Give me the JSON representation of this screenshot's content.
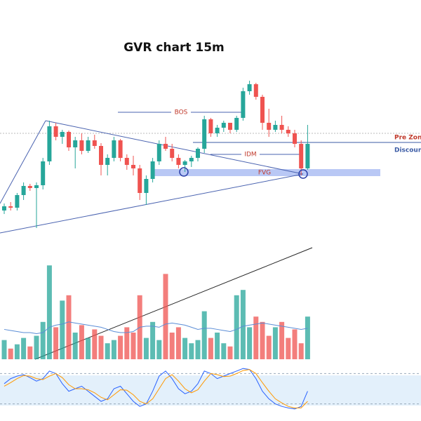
{
  "chart_data": {
    "type": "candlestick",
    "title": "GVR chart 15m",
    "annotations": {
      "bos": "BOS",
      "idm": "IDM",
      "fvg": "FVG",
      "pre_zone": "Pre Zone",
      "discount": "Discount"
    },
    "up_color": "#26a69a",
    "down_color": "#ef5350",
    "ylim": [
      60,
      300
    ],
    "open": [
      100,
      106,
      104,
      122,
      135,
      132,
      136,
      170,
      220,
      205,
      212,
      190,
      200,
      185,
      200,
      192,
      165,
      175,
      200,
      175,
      165,
      160,
      125,
      145,
      170,
      195,
      188,
      175,
      165,
      170,
      175,
      188,
      230,
      210,
      218,
      225,
      215,
      232,
      270,
      280,
      262,
      225,
      215,
      222,
      215,
      210,
      195,
      160
    ],
    "high": [
      110,
      112,
      125,
      140,
      138,
      140,
      175,
      228,
      225,
      215,
      214,
      205,
      210,
      205,
      208,
      196,
      180,
      205,
      202,
      180,
      178,
      165,
      150,
      175,
      200,
      205,
      195,
      180,
      172,
      178,
      190,
      235,
      232,
      222,
      228,
      225,
      235,
      275,
      285,
      282,
      265,
      245,
      228,
      235,
      220,
      215,
      200,
      222
    ],
    "low": [
      95,
      100,
      100,
      115,
      128,
      75,
      130,
      165,
      200,
      195,
      185,
      160,
      180,
      182,
      188,
      150,
      150,
      170,
      170,
      158,
      150,
      115,
      108,
      140,
      165,
      185,
      170,
      160,
      155,
      162,
      170,
      182,
      205,
      205,
      212,
      210,
      212,
      228,
      265,
      258,
      215,
      205,
      212,
      210,
      205,
      190,
      150,
      158
    ],
    "close": [
      106,
      104,
      122,
      135,
      132,
      136,
      170,
      220,
      205,
      212,
      190,
      200,
      185,
      200,
      192,
      165,
      175,
      200,
      175,
      165,
      160,
      125,
      145,
      170,
      195,
      188,
      175,
      165,
      170,
      175,
      188,
      230,
      210,
      218,
      225,
      215,
      232,
      270,
      280,
      262,
      225,
      215,
      222,
      215,
      210,
      195,
      160,
      195
    ],
    "volume": {
      "ylim": [
        0,
        100
      ],
      "values": [
        18,
        10,
        14,
        20,
        12,
        22,
        35,
        88,
        30,
        55,
        60,
        25,
        32,
        20,
        28,
        22,
        15,
        18,
        22,
        30,
        25,
        60,
        20,
        35,
        18,
        80,
        25,
        30,
        20,
        15,
        18,
        45,
        20,
        25,
        15,
        12,
        60,
        65,
        30,
        40,
        35,
        22,
        30,
        35,
        20,
        28,
        15,
        40
      ],
      "ma": [
        28,
        27,
        26,
        25,
        25,
        24,
        25,
        30,
        32,
        33,
        35,
        34,
        33,
        32,
        31,
        30,
        28,
        26,
        25,
        25,
        26,
        30,
        31,
        31,
        30,
        33,
        34,
        33,
        32,
        30,
        28,
        29,
        29,
        28,
        27,
        26,
        28,
        31,
        32,
        33,
        34,
        33,
        32,
        31,
        30,
        29,
        28,
        29
      ],
      "ma_color": "#5b8dd6"
    },
    "stoch": {
      "ylim": [
        0,
        100
      ],
      "band": [
        20,
        80
      ],
      "k": [
        60,
        70,
        75,
        78,
        72,
        65,
        70,
        85,
        80,
        60,
        45,
        50,
        55,
        45,
        35,
        25,
        30,
        50,
        55,
        40,
        25,
        15,
        20,
        45,
        75,
        85,
        70,
        50,
        40,
        45,
        60,
        85,
        80,
        70,
        75,
        80,
        85,
        90,
        88,
        70,
        45,
        30,
        20,
        15,
        12,
        10,
        15,
        45
      ],
      "d": [
        55,
        62,
        70,
        76,
        75,
        70,
        68,
        75,
        80,
        72,
        58,
        50,
        50,
        48,
        42,
        33,
        28,
        38,
        48,
        47,
        38,
        25,
        20,
        30,
        50,
        70,
        78,
        65,
        50,
        42,
        48,
        65,
        80,
        78,
        74,
        75,
        80,
        86,
        88,
        80,
        62,
        45,
        30,
        22,
        15,
        12,
        12,
        25
      ],
      "k_color": "#2962ff",
      "d_color": "#ff9800"
    }
  }
}
